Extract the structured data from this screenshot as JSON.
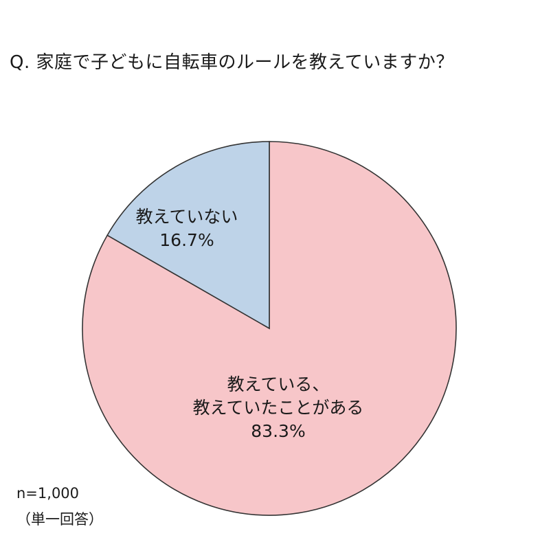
{
  "chart_data": {
    "type": "pie",
    "title": "Q. 家庭で子どもに自転車のルールを教えていますか？",
    "slices": [
      {
        "label_lines": [
          "教えている、",
          "教えていたことがある"
        ],
        "value": 83.3,
        "value_label": "83.3%",
        "color": "#f7c6c9"
      },
      {
        "label_lines": [
          "教えていない"
        ],
        "value": 16.7,
        "value_label": "16.7%",
        "color": "#bed3e8"
      }
    ],
    "start": "12 o'clock",
    "direction": "clockwise",
    "legend": "none",
    "sample_size": "n=1,000",
    "answer_type": "（単一回答）"
  }
}
